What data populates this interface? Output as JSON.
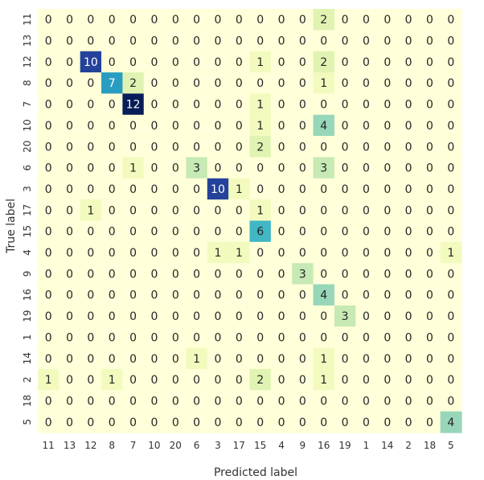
{
  "chart_data": {
    "type": "heatmap",
    "title": "",
    "xlabel": "Predicted label",
    "ylabel": "True label",
    "x_categories": [
      "11",
      "13",
      "12",
      "8",
      "7",
      "10",
      "20",
      "6",
      "3",
      "17",
      "15",
      "4",
      "9",
      "16",
      "19",
      "1",
      "14",
      "2",
      "18",
      "5"
    ],
    "y_categories": [
      "11",
      "13",
      "12",
      "8",
      "7",
      "10",
      "20",
      "6",
      "3",
      "17",
      "15",
      "4",
      "9",
      "16",
      "19",
      "1",
      "14",
      "2",
      "18",
      "5"
    ],
    "values": [
      [
        0,
        0,
        0,
        0,
        0,
        0,
        0,
        0,
        0,
        0,
        0,
        0,
        0,
        2,
        0,
        0,
        0,
        0,
        0,
        0
      ],
      [
        0,
        0,
        0,
        0,
        0,
        0,
        0,
        0,
        0,
        0,
        0,
        0,
        0,
        0,
        0,
        0,
        0,
        0,
        0,
        0
      ],
      [
        0,
        0,
        10,
        0,
        0,
        0,
        0,
        0,
        0,
        0,
        1,
        0,
        0,
        2,
        0,
        0,
        0,
        0,
        0,
        0
      ],
      [
        0,
        0,
        0,
        7,
        2,
        0,
        0,
        0,
        0,
        0,
        0,
        0,
        0,
        1,
        0,
        0,
        0,
        0,
        0,
        0
      ],
      [
        0,
        0,
        0,
        0,
        12,
        0,
        0,
        0,
        0,
        0,
        1,
        0,
        0,
        0,
        0,
        0,
        0,
        0,
        0,
        0
      ],
      [
        0,
        0,
        0,
        0,
        0,
        0,
        0,
        0,
        0,
        0,
        1,
        0,
        0,
        4,
        0,
        0,
        0,
        0,
        0,
        0
      ],
      [
        0,
        0,
        0,
        0,
        0,
        0,
        0,
        0,
        0,
        0,
        2,
        0,
        0,
        0,
        0,
        0,
        0,
        0,
        0,
        0
      ],
      [
        0,
        0,
        0,
        0,
        1,
        0,
        0,
        3,
        0,
        0,
        0,
        0,
        0,
        3,
        0,
        0,
        0,
        0,
        0,
        0
      ],
      [
        0,
        0,
        0,
        0,
        0,
        0,
        0,
        0,
        10,
        1,
        0,
        0,
        0,
        0,
        0,
        0,
        0,
        0,
        0,
        0
      ],
      [
        0,
        0,
        1,
        0,
        0,
        0,
        0,
        0,
        0,
        0,
        1,
        0,
        0,
        0,
        0,
        0,
        0,
        0,
        0,
        0
      ],
      [
        0,
        0,
        0,
        0,
        0,
        0,
        0,
        0,
        0,
        0,
        6,
        0,
        0,
        0,
        0,
        0,
        0,
        0,
        0,
        0
      ],
      [
        0,
        0,
        0,
        0,
        0,
        0,
        0,
        0,
        1,
        1,
        0,
        0,
        0,
        0,
        0,
        0,
        0,
        0,
        0,
        1
      ],
      [
        0,
        0,
        0,
        0,
        0,
        0,
        0,
        0,
        0,
        0,
        0,
        0,
        3,
        0,
        0,
        0,
        0,
        0,
        0,
        0
      ],
      [
        0,
        0,
        0,
        0,
        0,
        0,
        0,
        0,
        0,
        0,
        0,
        0,
        0,
        4,
        0,
        0,
        0,
        0,
        0,
        0
      ],
      [
        0,
        0,
        0,
        0,
        0,
        0,
        0,
        0,
        0,
        0,
        0,
        0,
        0,
        0,
        3,
        0,
        0,
        0,
        0,
        0
      ],
      [
        0,
        0,
        0,
        0,
        0,
        0,
        0,
        0,
        0,
        0,
        0,
        0,
        0,
        0,
        0,
        0,
        0,
        0,
        0,
        0
      ],
      [
        0,
        0,
        0,
        0,
        0,
        0,
        0,
        1,
        0,
        0,
        0,
        0,
        0,
        1,
        0,
        0,
        0,
        0,
        0,
        0
      ],
      [
        1,
        0,
        0,
        1,
        0,
        0,
        0,
        0,
        0,
        0,
        2,
        0,
        0,
        1,
        0,
        0,
        0,
        0,
        0,
        0
      ],
      [
        0,
        0,
        0,
        0,
        0,
        0,
        0,
        0,
        0,
        0,
        0,
        0,
        0,
        0,
        0,
        0,
        0,
        0,
        0,
        0
      ],
      [
        0,
        0,
        0,
        0,
        0,
        0,
        0,
        0,
        0,
        0,
        0,
        0,
        0,
        0,
        0,
        0,
        0,
        0,
        0,
        4
      ]
    ],
    "vmin": 0,
    "vmax": 12,
    "colormap": "YlGnBu",
    "grid": false,
    "colorbar": false
  }
}
